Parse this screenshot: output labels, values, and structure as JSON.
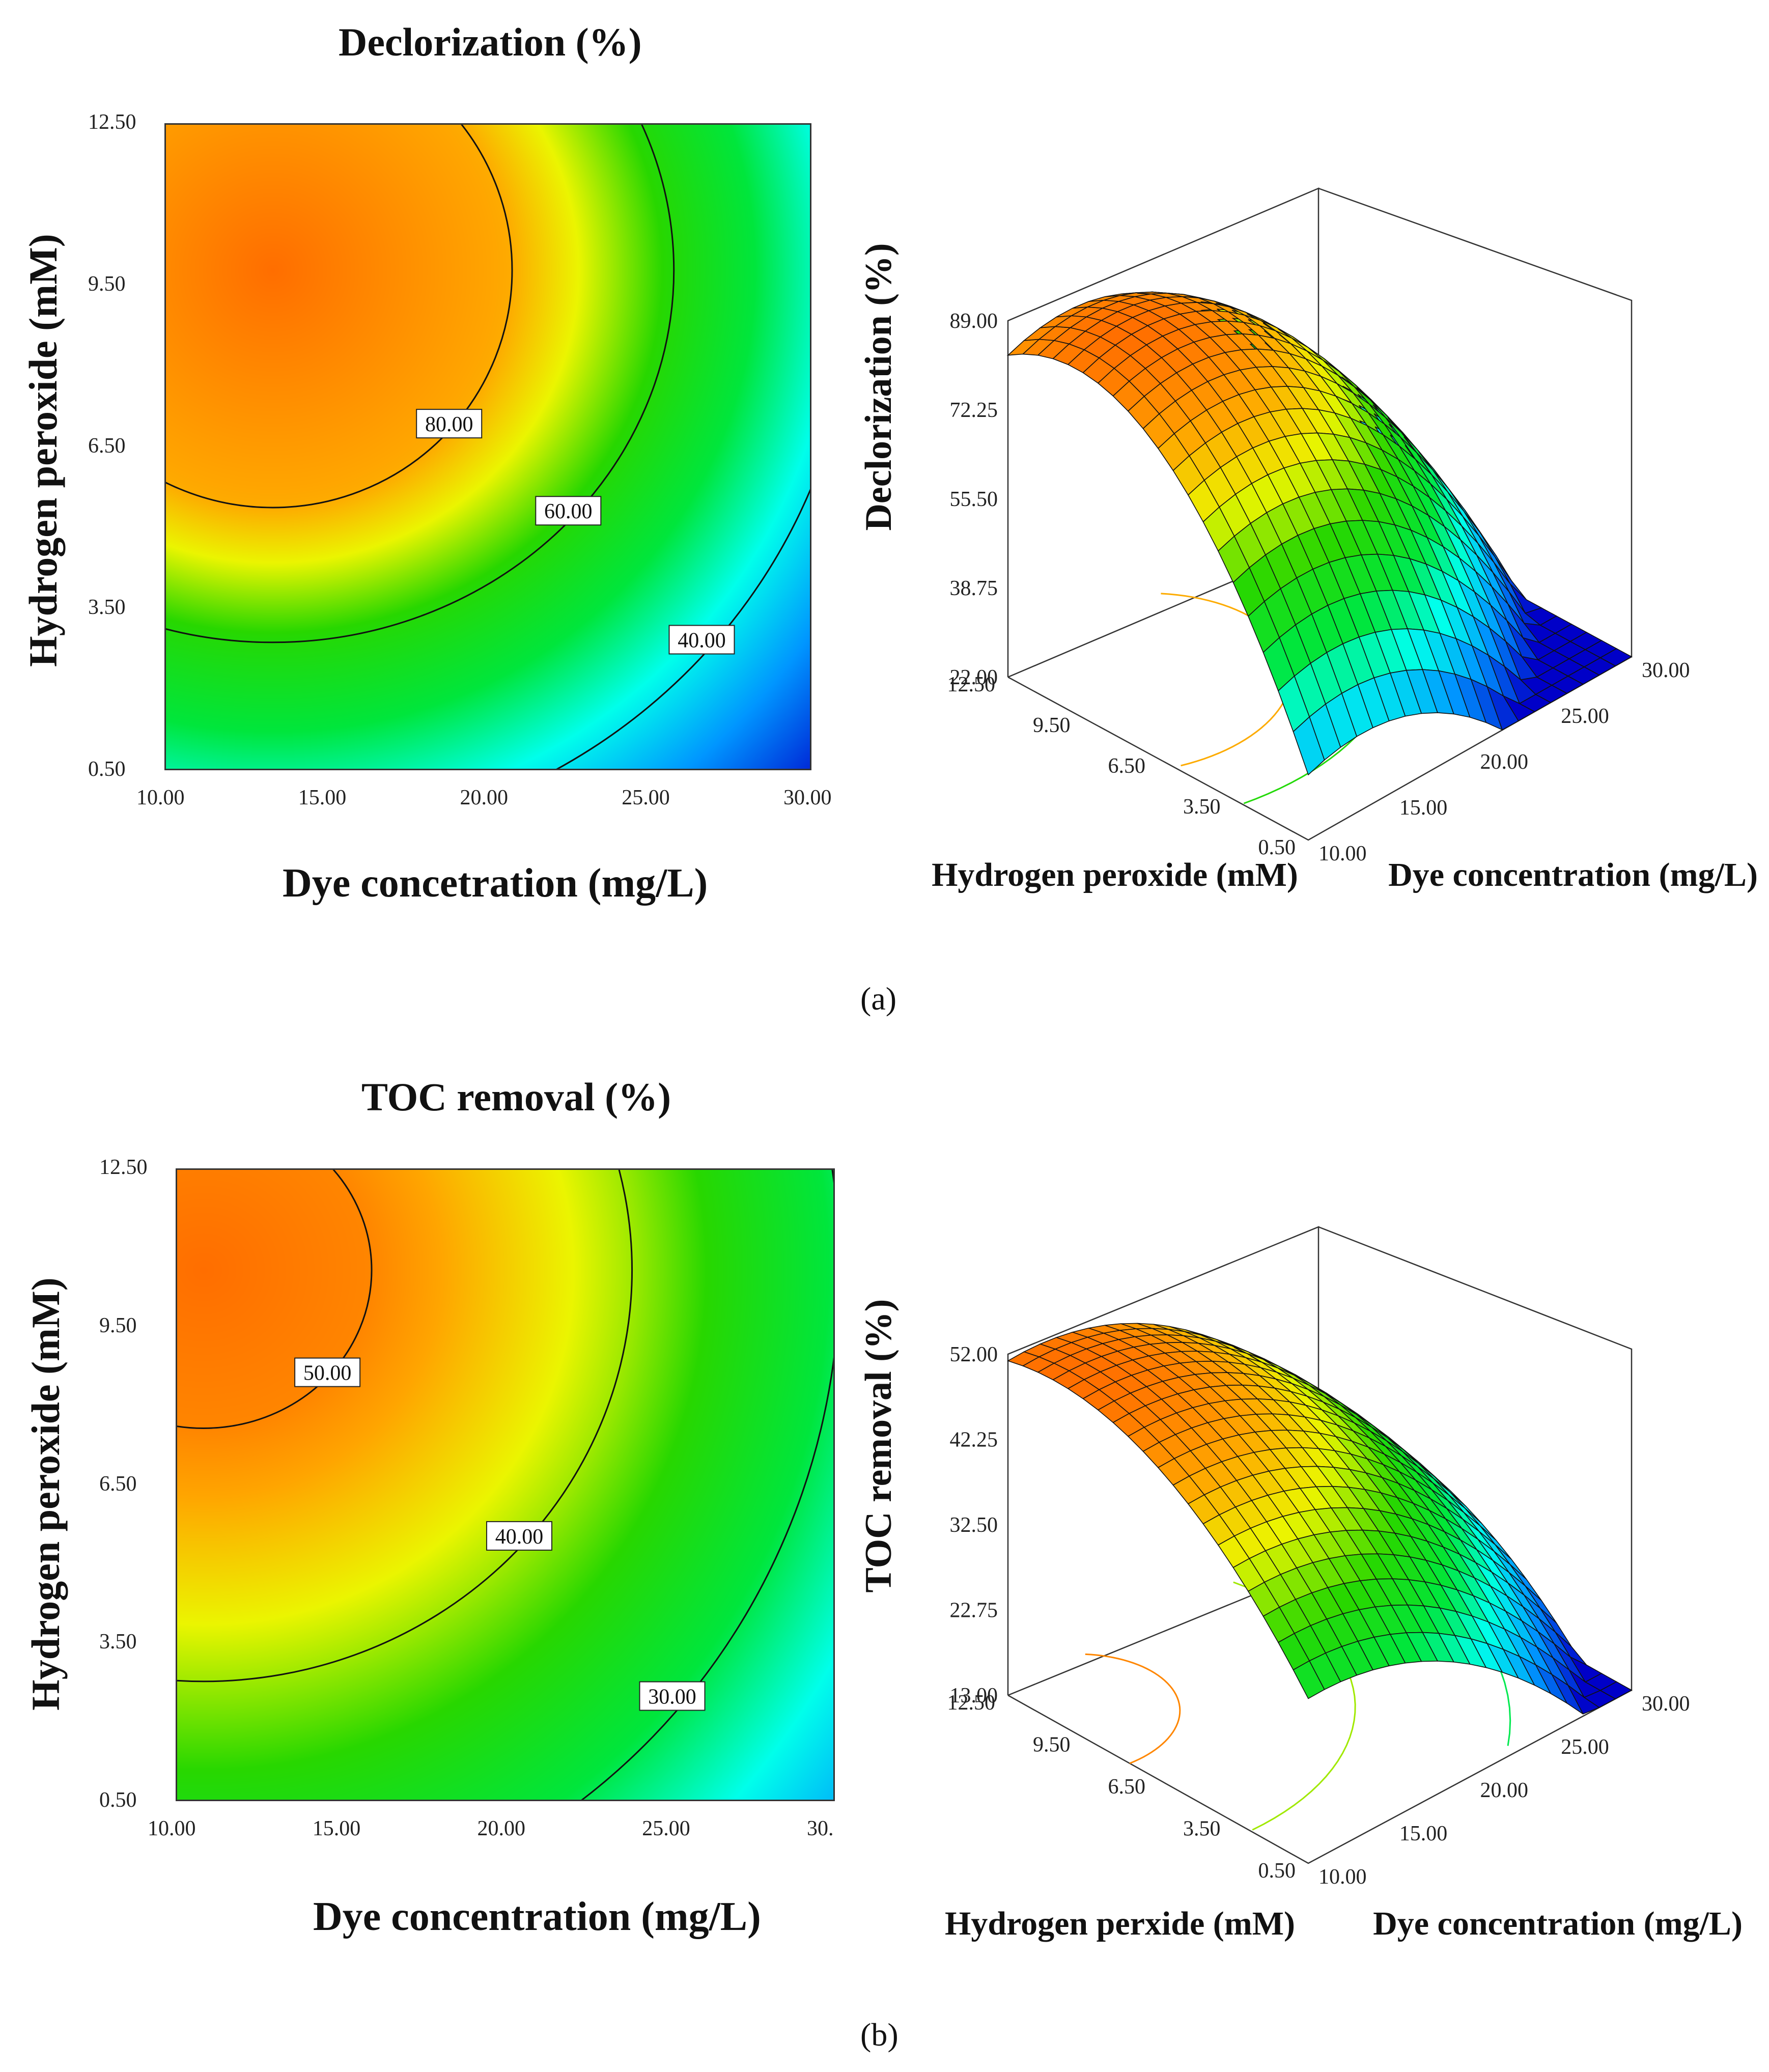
{
  "chart_data": [
    {
      "type": "contour",
      "title": "Declorization (%)",
      "xlabel": "Dye concetration (mg/L)",
      "ylabel": "Hydrogen peroxide (mM)",
      "xlim": [
        10,
        30
      ],
      "ylim": [
        0.5,
        12.5
      ],
      "xticks": [
        "10.00",
        "15.00",
        "20.00",
        "25.00",
        "30.00"
      ],
      "yticks": [
        "0.50",
        "3.50",
        "6.50",
        "9.50",
        "12.50"
      ],
      "optimum": {
        "x": 13.3,
        "y": 9.8
      },
      "contours": [
        {
          "level": 80,
          "label": "80.00",
          "radius_x": 7.4,
          "radius_y": 4.4
        },
        {
          "level": 60,
          "label": "60.00",
          "radius_x": 12.4,
          "radius_y": 6.9
        },
        {
          "level": 40,
          "label": "40.00",
          "radius_x": 18.0,
          "radius_y": 10.6
        }
      ],
      "color_range": [
        20,
        89
      ]
    },
    {
      "type": "surface3d",
      "zlabel": "Declorization (%)",
      "xlabel": "Hydrogen peroxide (mM)",
      "ylabel": "Dye concentration (mg/L)",
      "zticks": [
        "22.00",
        "38.75",
        "55.50",
        "72.25",
        "89.00"
      ],
      "xticks": [
        "12.50",
        "9.50",
        "6.50",
        "3.50",
        "0.50"
      ],
      "yticks": [
        "10.00",
        "15.00",
        "20.00",
        "25.00",
        "30.00"
      ],
      "zlim": [
        22,
        89
      ],
      "surface_range": [
        20,
        89
      ]
    },
    {
      "type": "contour",
      "title": "TOC removal (%)",
      "xlabel": "Dye concentration (mg/L)",
      "ylabel": "Hydrogen peroxide (mM)",
      "xlim": [
        10,
        30
      ],
      "ylim": [
        0.5,
        12.5
      ],
      "xticks": [
        "10.00",
        "15.00",
        "20.00",
        "25.00",
        "30."
      ],
      "yticks": [
        "0.50",
        "3.50",
        "6.50",
        "9.50",
        "12.50"
      ],
      "optimum": {
        "x": 10.8,
        "y": 10.6
      },
      "contours": [
        {
          "level": 50,
          "label": "50.00",
          "radius_x": 5.1,
          "radius_y": 3.0
        },
        {
          "level": 40,
          "label": "40.00",
          "radius_x": 13.0,
          "radius_y": 7.8
        },
        {
          "level": 30,
          "label": "30.00",
          "radius_x": 19.3,
          "radius_y": 12.5
        }
      ],
      "color_range": [
        13,
        52
      ]
    },
    {
      "type": "surface3d",
      "zlabel": "TOC removal (%)",
      "xlabel": "Hydrogen perxide (mM)",
      "ylabel": "Dye concentration  (mg/L)",
      "zticks": [
        "13.00",
        "22.75",
        "32.50",
        "42.25",
        "52.00"
      ],
      "xticks": [
        "12.50",
        "9.50",
        "6.50",
        "3.50",
        "0.50"
      ],
      "yticks": [
        "10.00",
        "15.00",
        "20.00",
        "25.00",
        "30.00"
      ],
      "zlim": [
        13,
        52
      ],
      "surface_range": [
        13,
        52
      ]
    }
  ],
  "panel_labels": [
    "(a)",
    "(b)"
  ]
}
